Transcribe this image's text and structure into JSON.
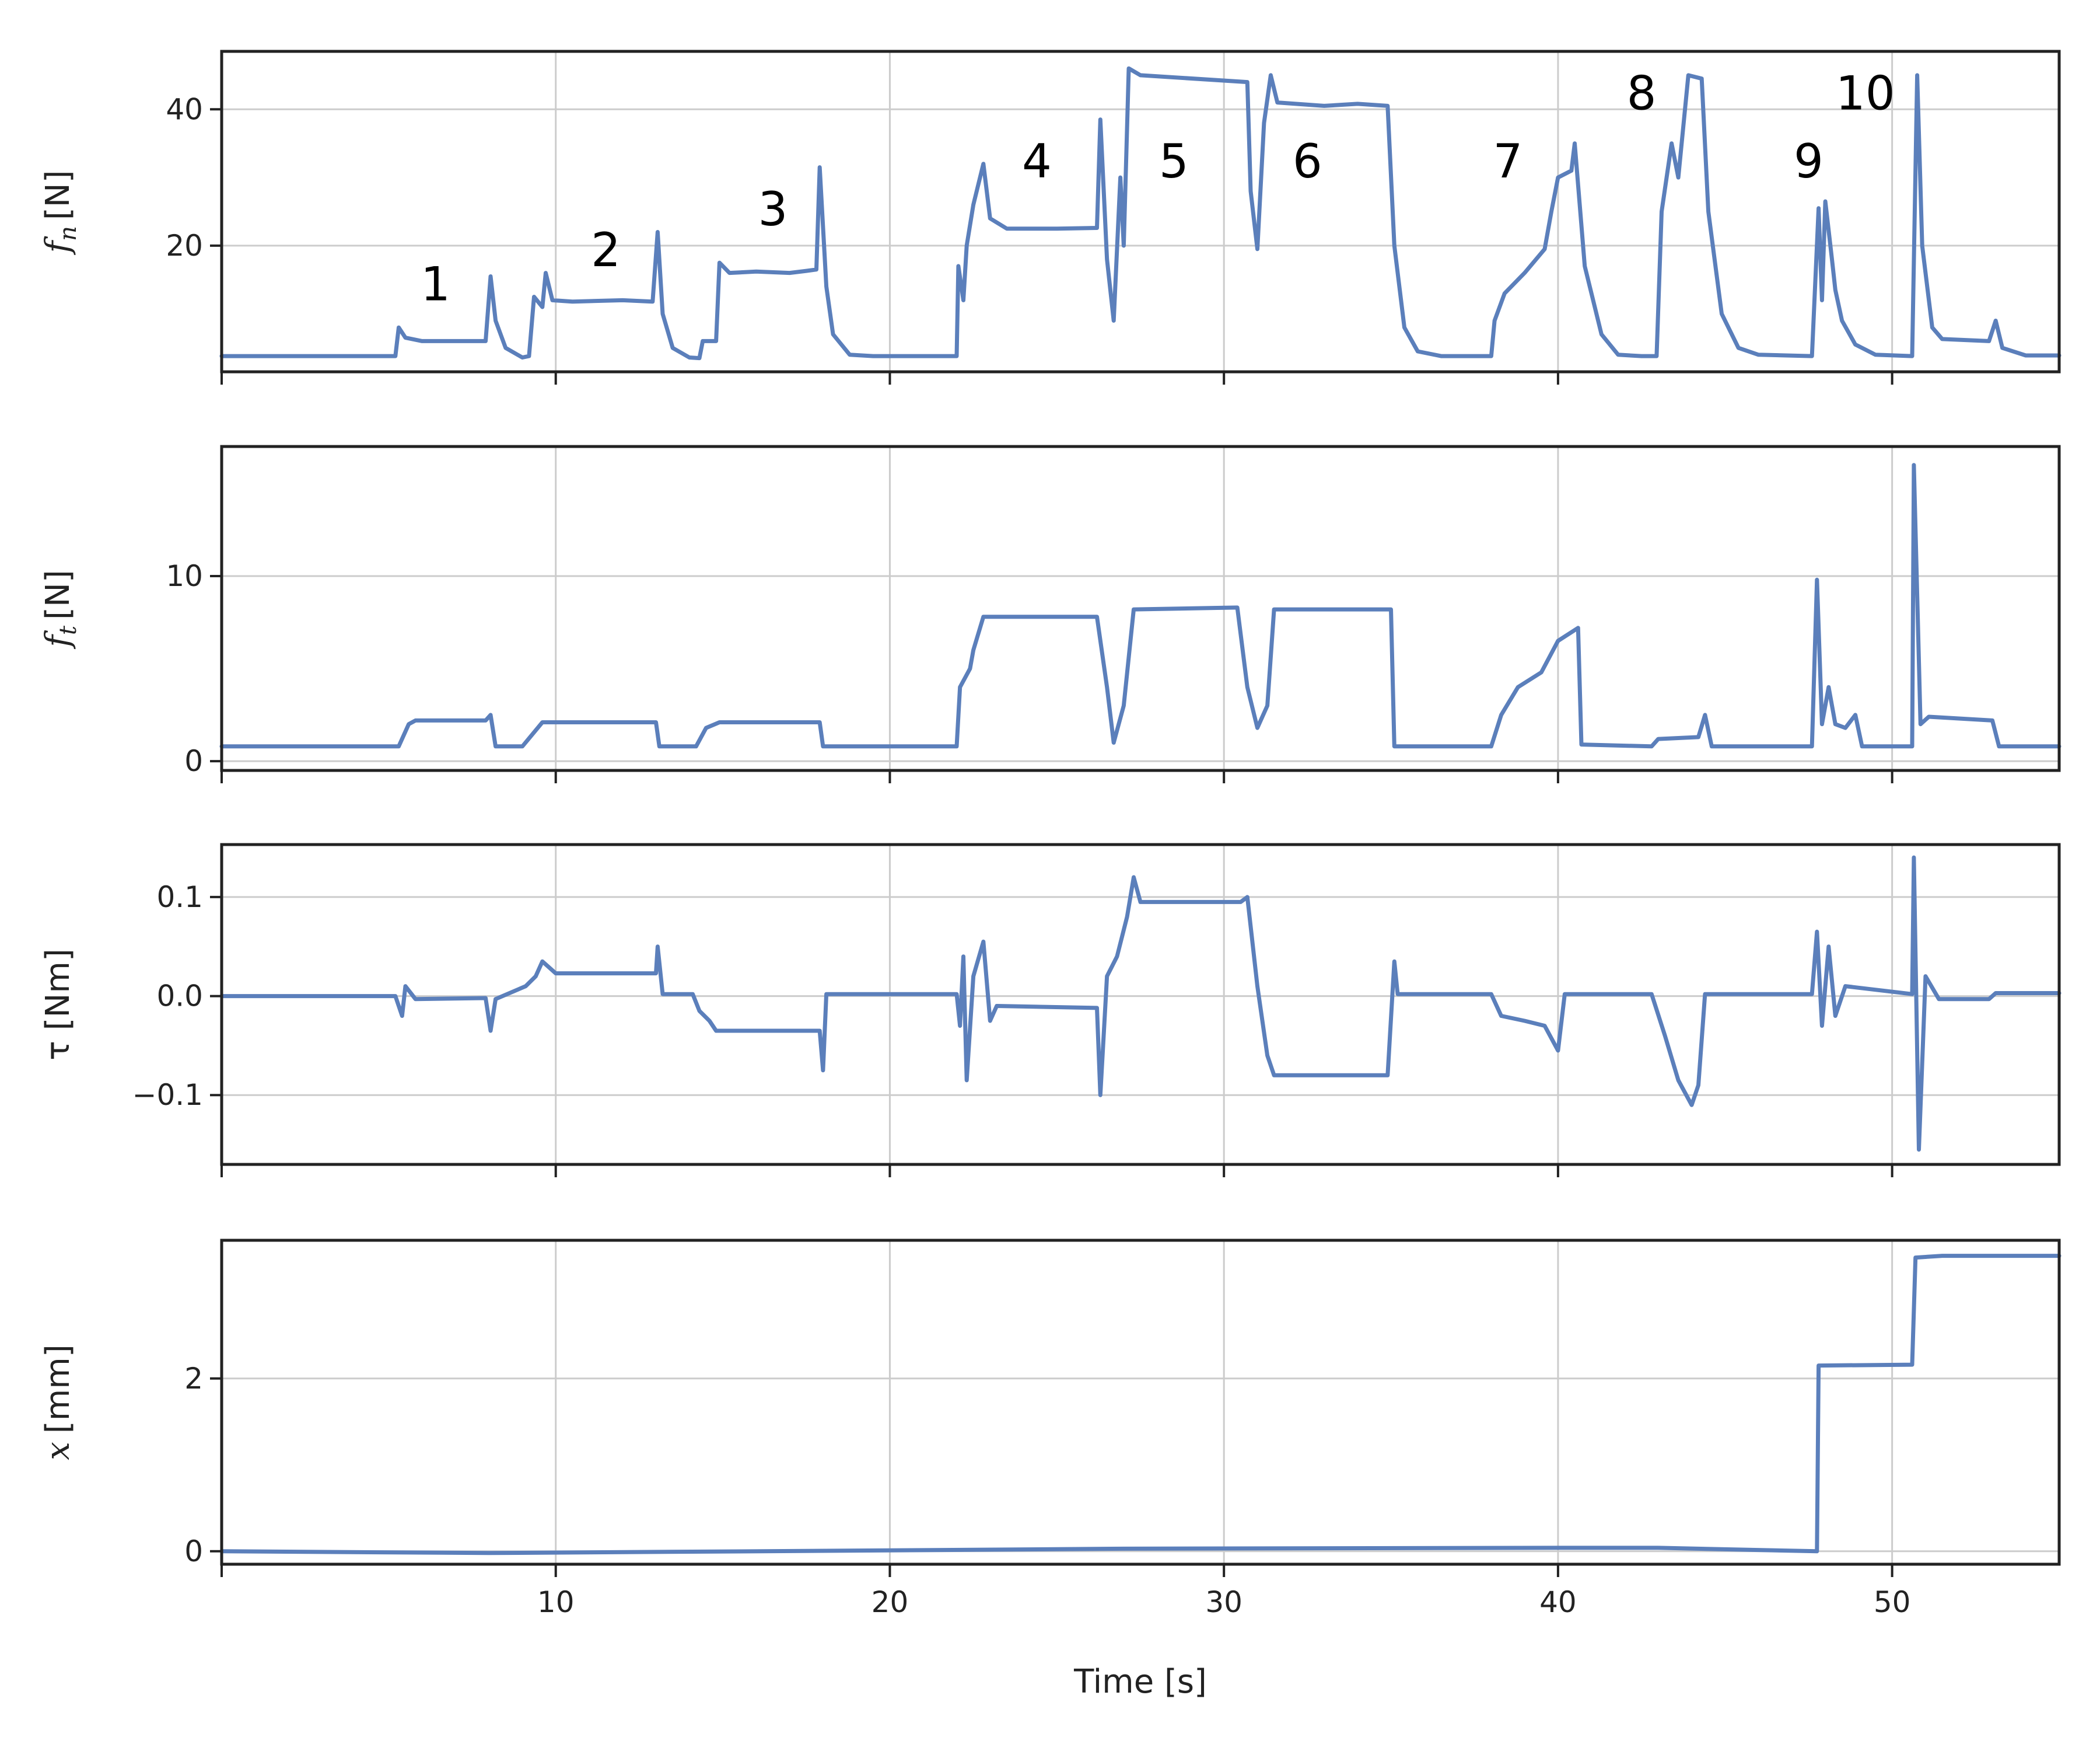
{
  "chart_data": {
    "type": "line",
    "xlabel": "Time [s]",
    "xlim": [
      0,
      55
    ],
    "xticks": [
      10,
      20,
      30,
      40,
      50
    ],
    "line_color": "#5b7fbb",
    "panels": [
      {
        "id": "fn",
        "ylabel_main": "f",
        "ylabel_sub": "n",
        "ylabel_unit": "[N]",
        "ylim": [
          1.5,
          48.5
        ],
        "yticks": [
          20,
          40
        ],
        "annotations": [
          {
            "label": "1",
            "x": 6.4,
            "y": 12
          },
          {
            "label": "2",
            "x": 11.5,
            "y": 17
          },
          {
            "label": "3",
            "x": 16.5,
            "y": 23
          },
          {
            "label": "4",
            "x": 24.4,
            "y": 30
          },
          {
            "label": "5",
            "x": 28.5,
            "y": 30
          },
          {
            "label": "6",
            "x": 32.5,
            "y": 30
          },
          {
            "label": "7",
            "x": 38.5,
            "y": 30
          },
          {
            "label": "8",
            "x": 42.5,
            "y": 40
          },
          {
            "label": "9",
            "x": 47.5,
            "y": 30
          },
          {
            "label": "10",
            "x": 49.2,
            "y": 40
          }
        ],
        "points": [
          [
            0,
            3.8
          ],
          [
            5.2,
            3.8
          ],
          [
            5.3,
            8
          ],
          [
            5.5,
            6.5
          ],
          [
            6,
            6
          ],
          [
            7.9,
            6
          ],
          [
            8.05,
            15.5
          ],
          [
            8.2,
            9
          ],
          [
            8.5,
            5
          ],
          [
            9,
            3.6
          ],
          [
            9.2,
            3.8
          ],
          [
            9.35,
            12.5
          ],
          [
            9.6,
            11
          ],
          [
            9.7,
            16
          ],
          [
            9.9,
            12
          ],
          [
            10.5,
            11.8
          ],
          [
            12,
            12
          ],
          [
            12.9,
            11.8
          ],
          [
            13.05,
            22
          ],
          [
            13.2,
            10
          ],
          [
            13.5,
            5
          ],
          [
            14,
            3.6
          ],
          [
            14.3,
            3.5
          ],
          [
            14.4,
            6
          ],
          [
            14.8,
            6
          ],
          [
            14.9,
            17.5
          ],
          [
            15.2,
            16
          ],
          [
            16,
            16.2
          ],
          [
            17,
            16
          ],
          [
            17.5,
            16.3
          ],
          [
            17.8,
            16.5
          ],
          [
            17.9,
            31.5
          ],
          [
            18.1,
            14
          ],
          [
            18.3,
            7
          ],
          [
            18.8,
            4
          ],
          [
            19.5,
            3.8
          ],
          [
            22,
            3.8
          ],
          [
            22.05,
            17
          ],
          [
            22.2,
            12
          ],
          [
            22.3,
            20
          ],
          [
            22.5,
            26
          ],
          [
            22.8,
            32
          ],
          [
            23,
            24
          ],
          [
            23.5,
            22.5
          ],
          [
            25,
            22.5
          ],
          [
            26.2,
            22.6
          ],
          [
            26.3,
            38.5
          ],
          [
            26.5,
            18
          ],
          [
            26.7,
            9
          ],
          [
            26.9,
            30
          ],
          [
            27,
            20
          ],
          [
            27.15,
            46
          ],
          [
            27.5,
            45
          ],
          [
            30.7,
            44
          ],
          [
            30.8,
            28
          ],
          [
            31,
            19.5
          ],
          [
            31.2,
            38
          ],
          [
            31.4,
            45
          ],
          [
            31.6,
            41
          ],
          [
            33,
            40.5
          ],
          [
            34,
            40.8
          ],
          [
            34.9,
            40.5
          ],
          [
            35.1,
            20
          ],
          [
            35.4,
            8
          ],
          [
            35.8,
            4.5
          ],
          [
            36.5,
            3.8
          ],
          [
            38,
            3.8
          ],
          [
            38.1,
            9
          ],
          [
            38.4,
            13
          ],
          [
            39,
            16
          ],
          [
            39.6,
            19.5
          ],
          [
            39.8,
            25
          ],
          [
            40,
            30
          ],
          [
            40.4,
            31
          ],
          [
            40.5,
            35
          ],
          [
            40.8,
            17
          ],
          [
            41.3,
            7
          ],
          [
            41.8,
            4
          ],
          [
            42.5,
            3.8
          ],
          [
            42.95,
            3.8
          ],
          [
            43.1,
            25
          ],
          [
            43.4,
            35
          ],
          [
            43.6,
            30
          ],
          [
            43.9,
            45
          ],
          [
            44.3,
            44.5
          ],
          [
            44.5,
            25
          ],
          [
            44.9,
            10
          ],
          [
            45.4,
            5
          ],
          [
            46,
            4
          ],
          [
            47.6,
            3.8
          ],
          [
            47.8,
            25.5
          ],
          [
            47.9,
            12
          ],
          [
            48,
            26.5
          ],
          [
            48.2,
            18
          ],
          [
            48.3,
            13.5
          ],
          [
            48.5,
            9
          ],
          [
            48.9,
            5.5
          ],
          [
            49.5,
            4
          ],
          [
            50.6,
            3.8
          ],
          [
            50.75,
            45
          ],
          [
            50.9,
            20
          ],
          [
            51.2,
            8
          ],
          [
            51.5,
            6.3
          ],
          [
            52.9,
            6
          ],
          [
            53.1,
            9
          ],
          [
            53.3,
            5
          ],
          [
            54,
            3.9
          ],
          [
            55,
            3.9
          ]
        ]
      },
      {
        "id": "ft",
        "ylabel_main": "f",
        "ylabel_sub": "t",
        "ylabel_unit": "[N]",
        "ylim": [
          -0.5,
          17
        ],
        "yticks": [
          0,
          10
        ],
        "points": [
          [
            0,
            0.8
          ],
          [
            5.3,
            0.8
          ],
          [
            5.6,
            2
          ],
          [
            5.8,
            2.2
          ],
          [
            7.9,
            2.2
          ],
          [
            8.05,
            2.5
          ],
          [
            8.2,
            0.8
          ],
          [
            9,
            0.8
          ],
          [
            9.6,
            2.1
          ],
          [
            13,
            2.1
          ],
          [
            13.1,
            0.8
          ],
          [
            14.2,
            0.8
          ],
          [
            14.5,
            1.8
          ],
          [
            14.9,
            2.1
          ],
          [
            17.9,
            2.1
          ],
          [
            18,
            0.8
          ],
          [
            22,
            0.8
          ],
          [
            22.1,
            4
          ],
          [
            22.4,
            5
          ],
          [
            22.5,
            6
          ],
          [
            22.8,
            7.8
          ],
          [
            26.2,
            7.8
          ],
          [
            26.5,
            4
          ],
          [
            26.7,
            1
          ],
          [
            27,
            3
          ],
          [
            27.3,
            8.2
          ],
          [
            30.4,
            8.3
          ],
          [
            30.7,
            4
          ],
          [
            31,
            1.8
          ],
          [
            31.3,
            3
          ],
          [
            31.5,
            8.2
          ],
          [
            35,
            8.2
          ],
          [
            35.1,
            0.8
          ],
          [
            38,
            0.8
          ],
          [
            38.3,
            2.5
          ],
          [
            38.8,
            4
          ],
          [
            39.5,
            4.8
          ],
          [
            40,
            6.5
          ],
          [
            40.6,
            7.2
          ],
          [
            40.7,
            0.9
          ],
          [
            42.8,
            0.8
          ],
          [
            43,
            1.2
          ],
          [
            44.2,
            1.3
          ],
          [
            44.4,
            2.5
          ],
          [
            44.6,
            0.8
          ],
          [
            47.6,
            0.8
          ],
          [
            47.75,
            9.8
          ],
          [
            47.9,
            2
          ],
          [
            48.1,
            4
          ],
          [
            48.3,
            2
          ],
          [
            48.6,
            1.8
          ],
          [
            48.9,
            2.5
          ],
          [
            49.1,
            0.8
          ],
          [
            50.6,
            0.8
          ],
          [
            50.65,
            16
          ],
          [
            50.85,
            2
          ],
          [
            51.1,
            2.4
          ],
          [
            53,
            2.2
          ],
          [
            53.2,
            0.8
          ],
          [
            55,
            0.8
          ]
        ]
      },
      {
        "id": "tau",
        "ylabel_main": "τ [Nm]",
        "ylim": [
          -0.17,
          0.153
        ],
        "yticks": [
          -0.1,
          0.0,
          0.1
        ],
        "ytick_labels": [
          "−0.1",
          "0.0",
          "0.1"
        ],
        "points": [
          [
            0,
            0
          ],
          [
            5.2,
            0
          ],
          [
            5.4,
            -0.02
          ],
          [
            5.5,
            0.01
          ],
          [
            5.8,
            -0.003
          ],
          [
            7.9,
            -0.002
          ],
          [
            8.05,
            -0.035
          ],
          [
            8.2,
            -0.003
          ],
          [
            9.1,
            0.01
          ],
          [
            9.4,
            0.02
          ],
          [
            9.6,
            0.035
          ],
          [
            10,
            0.023
          ],
          [
            13,
            0.023
          ],
          [
            13.05,
            0.05
          ],
          [
            13.2,
            0.002
          ],
          [
            14.1,
            0.002
          ],
          [
            14.3,
            -0.015
          ],
          [
            14.6,
            -0.025
          ],
          [
            14.8,
            -0.035
          ],
          [
            17.9,
            -0.035
          ],
          [
            18,
            -0.075
          ],
          [
            18.1,
            0.002
          ],
          [
            22,
            0.002
          ],
          [
            22.1,
            -0.03
          ],
          [
            22.2,
            0.04
          ],
          [
            22.3,
            -0.085
          ],
          [
            22.5,
            0.02
          ],
          [
            22.8,
            0.055
          ],
          [
            23,
            -0.025
          ],
          [
            23.2,
            -0.01
          ],
          [
            26.2,
            -0.012
          ],
          [
            26.3,
            -0.1
          ],
          [
            26.5,
            0.02
          ],
          [
            26.8,
            0.04
          ],
          [
            27.1,
            0.08
          ],
          [
            27.3,
            0.12
          ],
          [
            27.5,
            0.095
          ],
          [
            30.5,
            0.095
          ],
          [
            30.7,
            0.1
          ],
          [
            31,
            0.01
          ],
          [
            31.3,
            -0.06
          ],
          [
            31.5,
            -0.08
          ],
          [
            34.9,
            -0.08
          ],
          [
            35.1,
            0.035
          ],
          [
            35.2,
            0.002
          ],
          [
            38,
            0.002
          ],
          [
            38.3,
            -0.02
          ],
          [
            39,
            -0.025
          ],
          [
            39.6,
            -0.03
          ],
          [
            40,
            -0.055
          ],
          [
            40.2,
            0.002
          ],
          [
            42.8,
            0.002
          ],
          [
            43.2,
            -0.04
          ],
          [
            43.6,
            -0.085
          ],
          [
            44,
            -0.11
          ],
          [
            44.2,
            -0.09
          ],
          [
            44.4,
            0.002
          ],
          [
            47.6,
            0.002
          ],
          [
            47.75,
            0.065
          ],
          [
            47.9,
            -0.03
          ],
          [
            48.1,
            0.05
          ],
          [
            48.3,
            -0.02
          ],
          [
            48.6,
            0.01
          ],
          [
            50.6,
            0.002
          ],
          [
            50.65,
            0.14
          ],
          [
            50.8,
            -0.155
          ],
          [
            51,
            0.02
          ],
          [
            51.4,
            -0.003
          ],
          [
            52.9,
            -0.003
          ],
          [
            53.1,
            0.003
          ],
          [
            55,
            0.003
          ]
        ]
      },
      {
        "id": "x",
        "ylabel_main": "x",
        "ylabel_unit": "[mm]",
        "ylim": [
          -0.15,
          3.6
        ],
        "yticks": [
          0,
          2
        ],
        "points": [
          [
            0,
            0
          ],
          [
            8,
            -0.02
          ],
          [
            20,
            0.01
          ],
          [
            27,
            0.03
          ],
          [
            40,
            0.04
          ],
          [
            43,
            0.04
          ],
          [
            47.75,
            0
          ],
          [
            47.8,
            2.15
          ],
          [
            50.6,
            2.16
          ],
          [
            50.7,
            3.4
          ],
          [
            51.5,
            3.42
          ],
          [
            55,
            3.42
          ]
        ]
      }
    ]
  }
}
